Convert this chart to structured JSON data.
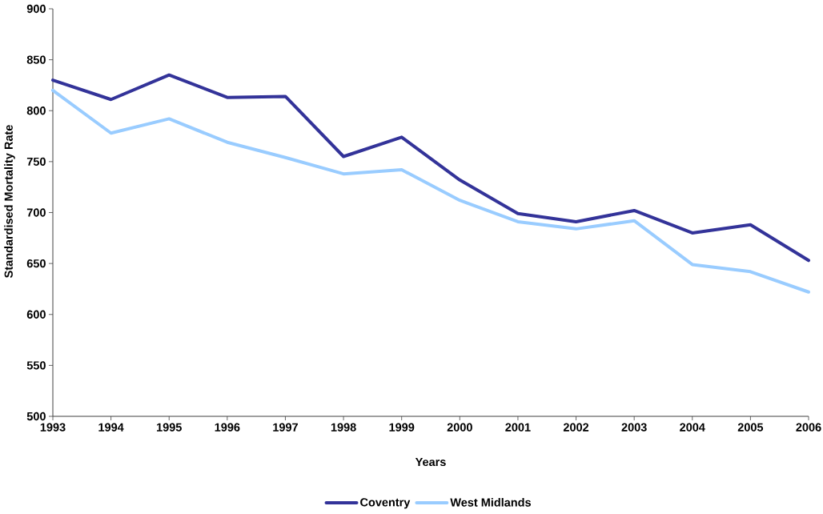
{
  "chart_data": {
    "type": "line",
    "xlabel": "Years",
    "ylabel": "Standardised Mortality Rate",
    "x": [
      1993,
      1994,
      1995,
      1996,
      1997,
      1998,
      1999,
      2000,
      2001,
      2002,
      2003,
      2004,
      2005,
      2006
    ],
    "xlim": [
      1993,
      2006
    ],
    "xticks": [
      1993,
      1994,
      1995,
      1996,
      1997,
      1998,
      1999,
      2000,
      2001,
      2002,
      2003,
      2004,
      2005,
      2006
    ],
    "ylim": [
      500,
      900
    ],
    "yticks": [
      500,
      550,
      600,
      650,
      700,
      750,
      800,
      850,
      900
    ],
    "series": [
      {
        "name": "Coventry",
        "color": "#333399",
        "values": [
          830,
          811,
          835,
          813,
          814,
          755,
          774,
          732,
          699,
          691,
          702,
          680,
          688,
          653
        ]
      },
      {
        "name": "West Midlands",
        "color": "#99ccff",
        "values": [
          820,
          778,
          792,
          769,
          754,
          738,
          742,
          712,
          691,
          684,
          692,
          649,
          642,
          622
        ]
      }
    ],
    "legend": "bottom",
    "marker": "none",
    "line_style": "solid"
  }
}
